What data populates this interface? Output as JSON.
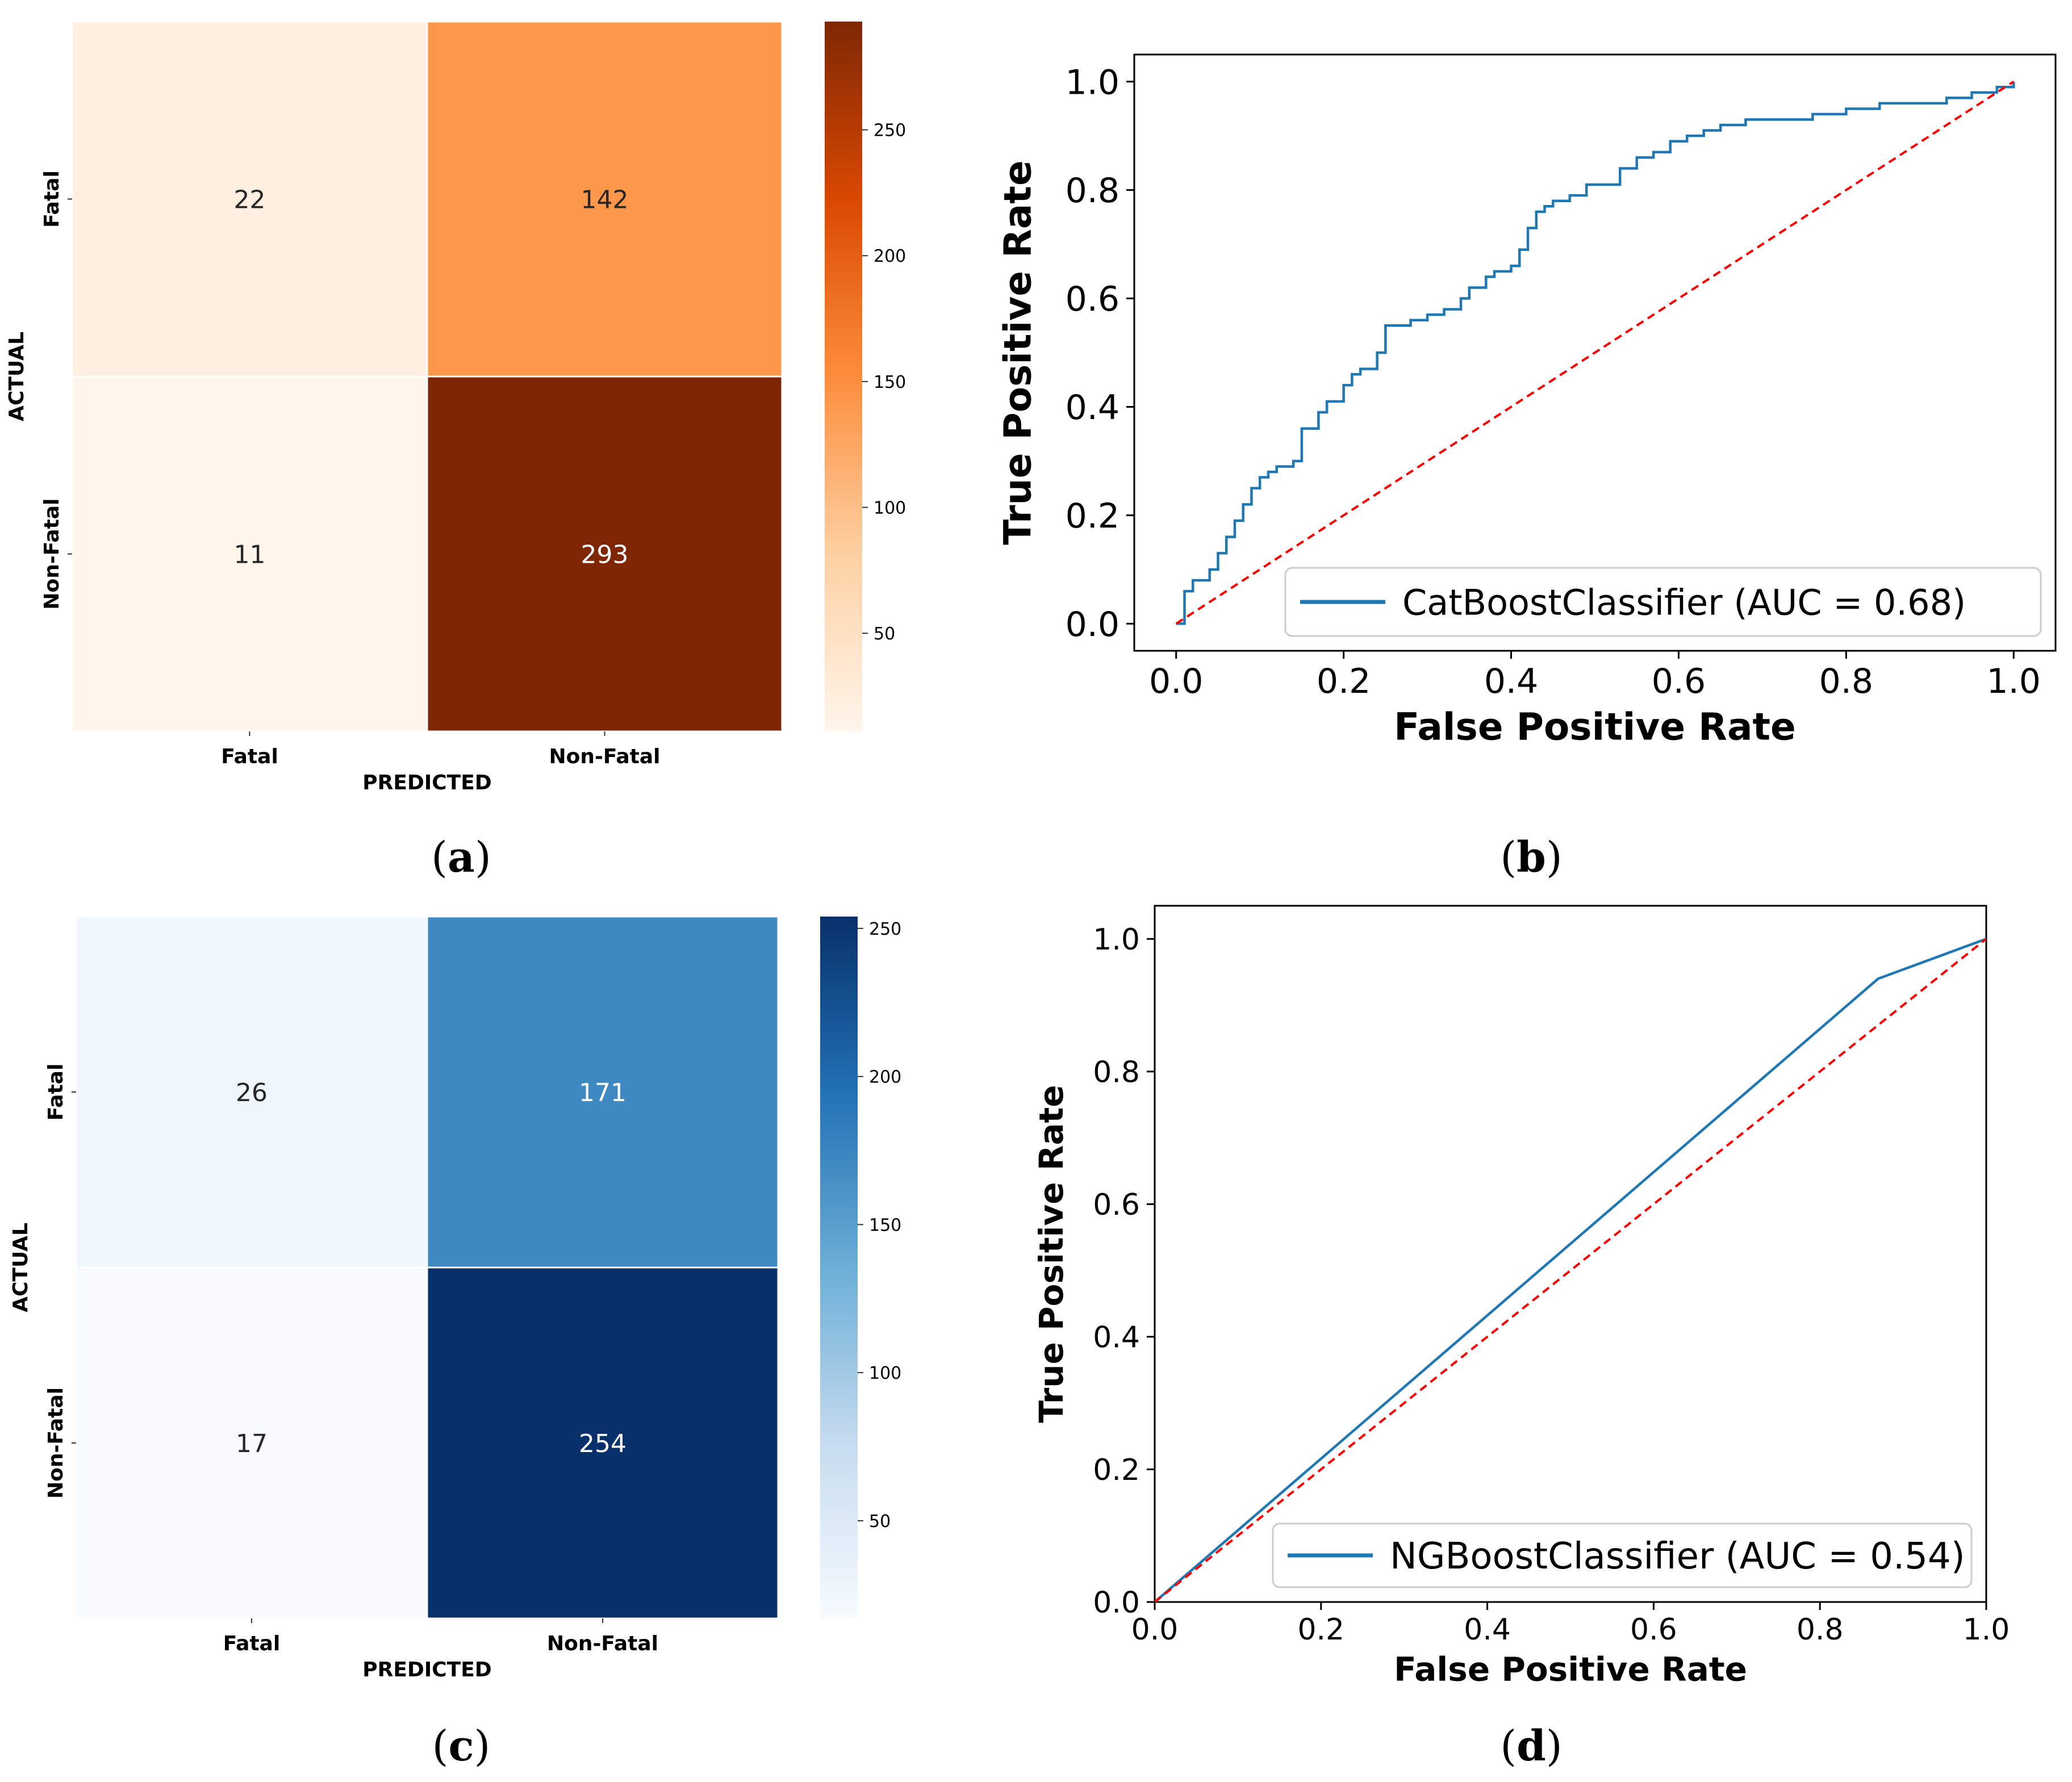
{
  "figure": {
    "captions": [
      "(a)",
      "(b)",
      "(c)",
      "(d)"
    ],
    "caption_letters": [
      "a",
      "b",
      "c",
      "d"
    ]
  },
  "chart_data": [
    {
      "id": "a",
      "type": "heatmap",
      "title": "",
      "xlabel": "PREDICTED",
      "ylabel": "ACTUAL",
      "x_categories": [
        "Fatal",
        "Non-Fatal"
      ],
      "y_categories": [
        "Fatal",
        "Non-Fatal"
      ],
      "values": [
        [
          22,
          142
        ],
        [
          11,
          293
        ]
      ],
      "colormap": "Oranges",
      "colormap_stops": [
        "#fff5eb",
        "#fdd0a2",
        "#fd8d3c",
        "#d94801",
        "#7f2704"
      ],
      "colorbar_range": [
        11,
        293
      ],
      "colorbar_ticks": [
        50,
        100,
        150,
        200,
        250
      ]
    },
    {
      "id": "b",
      "type": "line",
      "xlabel": "False Positive Rate",
      "ylabel": "True Positive Rate",
      "xlim": [
        -0.05,
        1.05
      ],
      "ylim": [
        -0.05,
        1.05
      ],
      "xticks": [
        0.0,
        0.2,
        0.4,
        0.6,
        0.8,
        1.0
      ],
      "yticks": [
        0.0,
        0.2,
        0.4,
        0.6,
        0.8,
        1.0
      ],
      "tick_labels": [
        "0.0",
        "0.2",
        "0.4",
        "0.6",
        "0.8",
        "1.0"
      ],
      "legend": {
        "position": "lower-right",
        "entries": [
          "CatBoostClassifier (AUC = 0.68)"
        ]
      },
      "series": [
        {
          "name": "CatBoostClassifier (AUC = 0.68)",
          "color": "#1f77b4",
          "x": [
            0.0,
            0.01,
            0.02,
            0.04,
            0.05,
            0.06,
            0.07,
            0.08,
            0.09,
            0.1,
            0.11,
            0.12,
            0.14,
            0.15,
            0.17,
            0.18,
            0.2,
            0.21,
            0.22,
            0.24,
            0.25,
            0.26,
            0.27,
            0.28,
            0.3,
            0.32,
            0.34,
            0.35,
            0.37,
            0.38,
            0.4,
            0.41,
            0.42,
            0.43,
            0.44,
            0.45,
            0.47,
            0.49,
            0.51,
            0.53,
            0.55,
            0.57,
            0.59,
            0.61,
            0.63,
            0.65,
            0.68,
            0.72,
            0.76,
            0.8,
            0.84,
            0.88,
            0.92,
            0.95,
            0.98,
            1.0
          ],
          "y": [
            0.0,
            0.06,
            0.08,
            0.1,
            0.13,
            0.16,
            0.19,
            0.22,
            0.25,
            0.27,
            0.28,
            0.29,
            0.3,
            0.36,
            0.39,
            0.41,
            0.44,
            0.46,
            0.47,
            0.5,
            0.55,
            0.55,
            0.55,
            0.56,
            0.57,
            0.58,
            0.6,
            0.62,
            0.64,
            0.65,
            0.66,
            0.69,
            0.73,
            0.76,
            0.77,
            0.78,
            0.79,
            0.81,
            0.81,
            0.84,
            0.86,
            0.87,
            0.89,
            0.9,
            0.91,
            0.92,
            0.93,
            0.93,
            0.94,
            0.95,
            0.96,
            0.96,
            0.97,
            0.98,
            0.99,
            1.0
          ]
        },
        {
          "name": "chance",
          "color": "#ff0000",
          "dashed": true,
          "x": [
            0.0,
            1.0
          ],
          "y": [
            0.0,
            1.0
          ]
        }
      ]
    },
    {
      "id": "c",
      "type": "heatmap",
      "title": "",
      "xlabel": "PREDICTED",
      "ylabel": "ACTUAL",
      "x_categories": [
        "Fatal",
        "Non-Fatal"
      ],
      "y_categories": [
        "Fatal",
        "Non-Fatal"
      ],
      "values": [
        [
          26,
          171
        ],
        [
          17,
          254
        ]
      ],
      "colormap": "Blues",
      "colormap_stops": [
        "#f7fbff",
        "#c6dbef",
        "#6baed6",
        "#2171b5",
        "#08306b"
      ],
      "colorbar_range": [
        17,
        254
      ],
      "colorbar_ticks": [
        50,
        100,
        150,
        200,
        250
      ]
    },
    {
      "id": "d",
      "type": "line",
      "xlabel": "False Positive Rate",
      "ylabel": "True Positive Rate",
      "xlim": [
        0.0,
        1.0
      ],
      "ylim": [
        0.0,
        1.05
      ],
      "xticks": [
        0.0,
        0.2,
        0.4,
        0.6,
        0.8,
        1.0
      ],
      "yticks": [
        0.0,
        0.2,
        0.4,
        0.6,
        0.8,
        1.0
      ],
      "tick_labels": [
        "0.0",
        "0.2",
        "0.4",
        "0.6",
        "0.8",
        "1.0"
      ],
      "legend": {
        "position": "lower-right",
        "entries": [
          "NGBoostClassifier (AUC = 0.54)"
        ]
      },
      "series": [
        {
          "name": "NGBoostClassifier (AUC = 0.54)",
          "color": "#1f77b4",
          "x": [
            0.0,
            0.87,
            1.0
          ],
          "y": [
            0.0,
            0.94,
            1.0
          ]
        },
        {
          "name": "chance",
          "color": "#ff0000",
          "dashed": true,
          "x": [
            0.0,
            1.0
          ],
          "y": [
            0.0,
            1.0
          ]
        }
      ]
    }
  ]
}
